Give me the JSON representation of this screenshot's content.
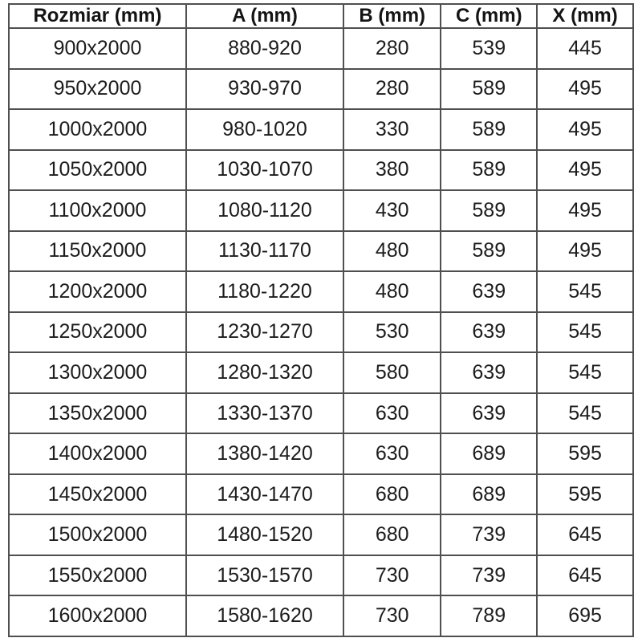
{
  "chart_data": {
    "type": "table",
    "title": "",
    "columns": [
      "Rozmiar (mm)",
      "A (mm)",
      "B (mm)",
      "C (mm)",
      "X (mm)"
    ],
    "rows": [
      [
        "900x2000",
        "880-920",
        "280",
        "539",
        "445"
      ],
      [
        "950x2000",
        "930-970",
        "280",
        "589",
        "495"
      ],
      [
        "1000x2000",
        "980-1020",
        "330",
        "589",
        "495"
      ],
      [
        "1050x2000",
        "1030-1070",
        "380",
        "589",
        "495"
      ],
      [
        "1100x2000",
        "1080-1120",
        "430",
        "589",
        "495"
      ],
      [
        "1150x2000",
        "1130-1170",
        "480",
        "589",
        "495"
      ],
      [
        "1200x2000",
        "1180-1220",
        "480",
        "639",
        "545"
      ],
      [
        "1250x2000",
        "1230-1270",
        "530",
        "639",
        "545"
      ],
      [
        "1300x2000",
        "1280-1320",
        "580",
        "639",
        "545"
      ],
      [
        "1350x2000",
        "1330-1370",
        "630",
        "639",
        "545"
      ],
      [
        "1400x2000",
        "1380-1420",
        "630",
        "689",
        "595"
      ],
      [
        "1450x2000",
        "1430-1470",
        "680",
        "689",
        "595"
      ],
      [
        "1500x2000",
        "1480-1520",
        "680",
        "739",
        "645"
      ],
      [
        "1550x2000",
        "1530-1570",
        "730",
        "739",
        "645"
      ],
      [
        "1600x2000",
        "1580-1620",
        "730",
        "789",
        "695"
      ]
    ],
    "layout": {
      "grid": true,
      "header_bold": true,
      "text_align": "center"
    }
  },
  "colors": {
    "background": "#ffffff",
    "text": "#1c1c1c",
    "border_outer": "#262626",
    "border_inner": "#4f4f4f"
  }
}
